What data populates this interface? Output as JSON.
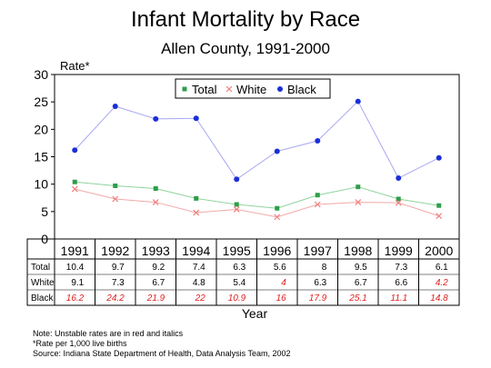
{
  "chart_data": {
    "type": "line",
    "title": "Infant Mortality by Race",
    "subtitle": "Allen County, 1991-2000",
    "ylabel": "Rate*",
    "xlabel": "Year",
    "ylim": [
      0,
      30
    ],
    "yticks": [
      0,
      5,
      10,
      15,
      20,
      25,
      30
    ],
    "categories": [
      "1991",
      "1992",
      "1993",
      "1994",
      "1995",
      "1996",
      "1997",
      "1998",
      "1999",
      "2000"
    ],
    "legend_position": "top",
    "grid": false,
    "series": [
      {
        "name": "Total",
        "color": "#2e9e4a",
        "marker": "square",
        "values": [
          10.4,
          9.7,
          9.2,
          7.4,
          6.3,
          5.6,
          8,
          9.5,
          7.3,
          6.1
        ],
        "table_labels": [
          "10.4",
          "9.7",
          "9.2",
          "7.4",
          "6.3",
          "5.6",
          "8",
          "9.5",
          "7.3",
          "6.1"
        ],
        "unstable": [
          false,
          false,
          false,
          false,
          false,
          false,
          false,
          false,
          false,
          false
        ]
      },
      {
        "name": "White",
        "color": "#f08080",
        "marker": "x",
        "values": [
          9.1,
          7.3,
          6.7,
          4.8,
          5.4,
          4,
          6.3,
          6.7,
          6.6,
          4.2
        ],
        "table_labels": [
          "9.1",
          "7.3",
          "6.7",
          "4.8",
          "5.4",
          "4",
          "6.3",
          "6.7",
          "6.6",
          "4.2"
        ],
        "unstable": [
          false,
          false,
          false,
          false,
          false,
          true,
          false,
          false,
          false,
          true
        ]
      },
      {
        "name": "Black",
        "color": "#1a2fd8",
        "marker": "circle",
        "values": [
          16.2,
          24.2,
          21.9,
          22,
          10.9,
          16,
          17.9,
          25.1,
          11.1,
          14.8
        ],
        "table_labels": [
          "16.2",
          "24.2",
          "21.9",
          "22",
          "10.9",
          "16",
          "17.9",
          "25.1",
          "11.1",
          "14.8"
        ],
        "unstable": [
          true,
          true,
          true,
          true,
          true,
          true,
          true,
          true,
          true,
          true
        ]
      }
    ],
    "unstable_color": "#e02020"
  },
  "notes": [
    "Note:  Unstable rates are in red and italics",
    "*Rate per 1,000 live births",
    "Source:  Indiana State Department of Health, Data Analysis Team, 2002"
  ]
}
